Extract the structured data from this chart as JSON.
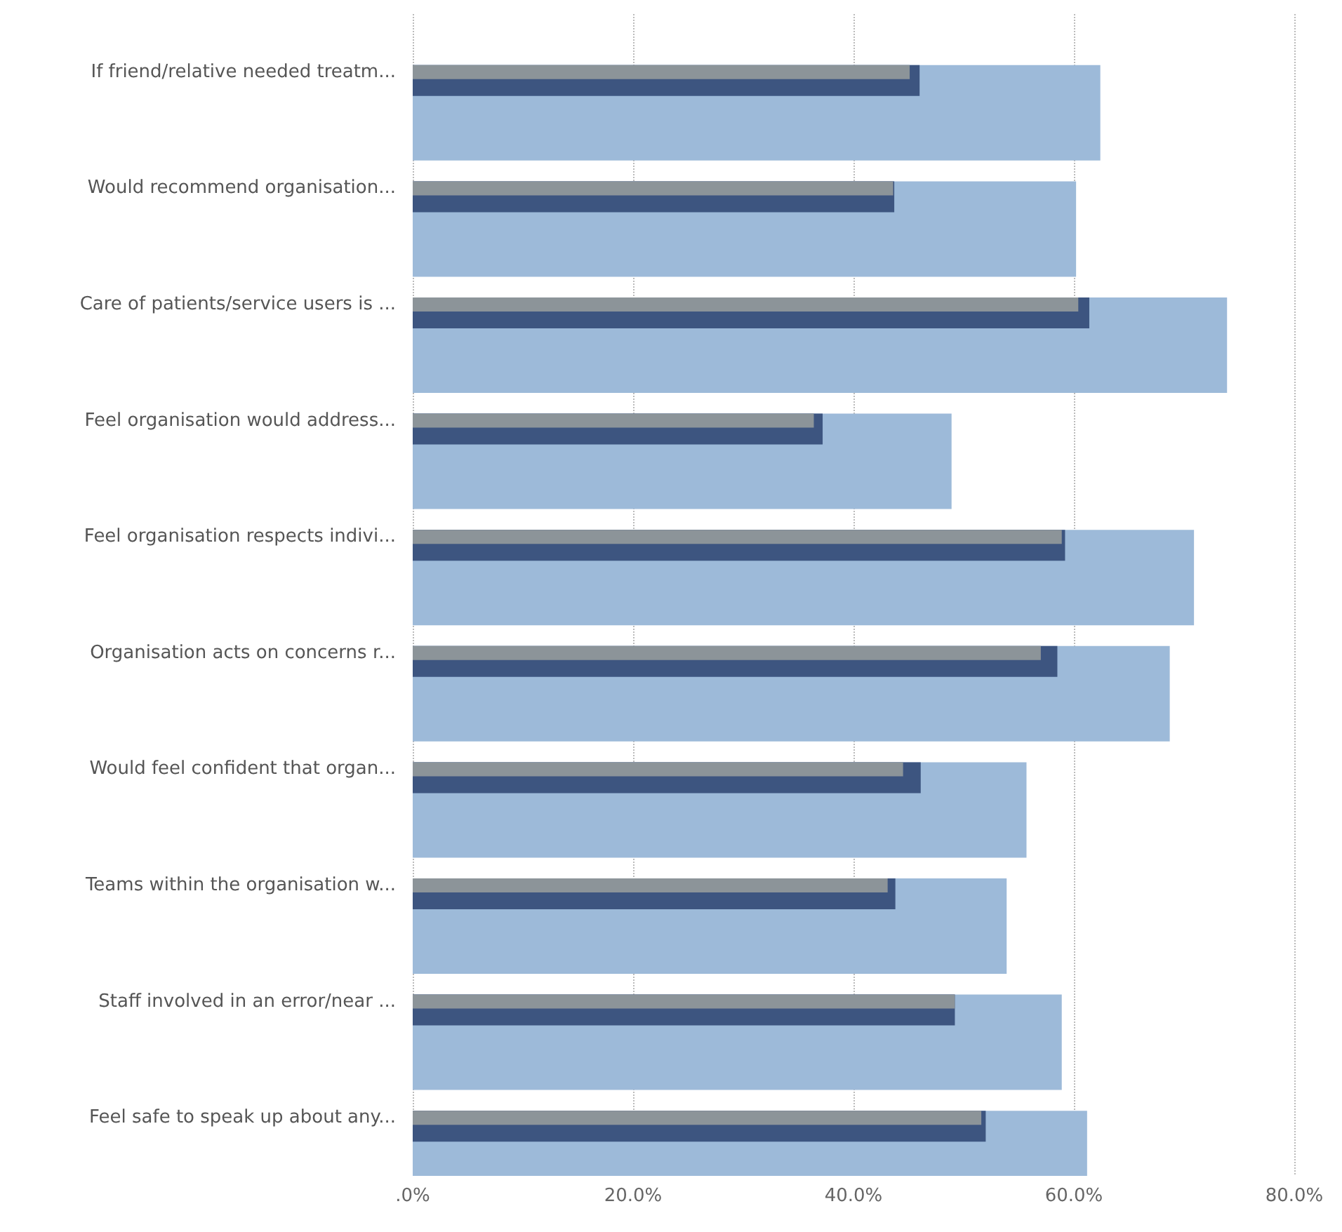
{
  "chart_data": {
    "type": "bar",
    "orientation": "horizontal",
    "categories": [
      "If friend/relative needed treatm...",
      "Would recommend organisation...",
      "Care of patients/service users is ...",
      "Feel organisation would address...",
      "Feel organisation respects indivi...",
      "Organisation acts on concerns r...",
      "Would feel confident that organ...",
      "Teams within the organisation w...",
      "Staff involved in an error/near ...",
      "Feel safe to speak up about any..."
    ],
    "series": [
      {
        "color": "#9dbad9",
        "values": [
          62.4,
          60.2,
          73.9,
          48.9,
          70.9,
          68.7,
          55.7,
          53.9,
          58.9,
          61.2
        ]
      },
      {
        "color": "#3d5580",
        "values": [
          46.0,
          43.7,
          61.4,
          37.2,
          59.2,
          58.5,
          46.1,
          43.8,
          49.2,
          52.0
        ]
      },
      {
        "color": "#8c9499",
        "values": [
          45.1,
          43.6,
          60.4,
          36.4,
          58.9,
          57.0,
          44.5,
          43.1,
          49.2,
          51.6
        ]
      }
    ],
    "xlim": [
      0,
      80
    ],
    "xticks": [
      {
        "value": 0,
        "label": ".0%"
      },
      {
        "value": 20,
        "label": "20.0%"
      },
      {
        "value": 40,
        "label": "40.0%"
      },
      {
        "value": 60,
        "label": "60.0%"
      },
      {
        "value": 80,
        "label": "80.0%"
      }
    ],
    "grid": "x"
  }
}
